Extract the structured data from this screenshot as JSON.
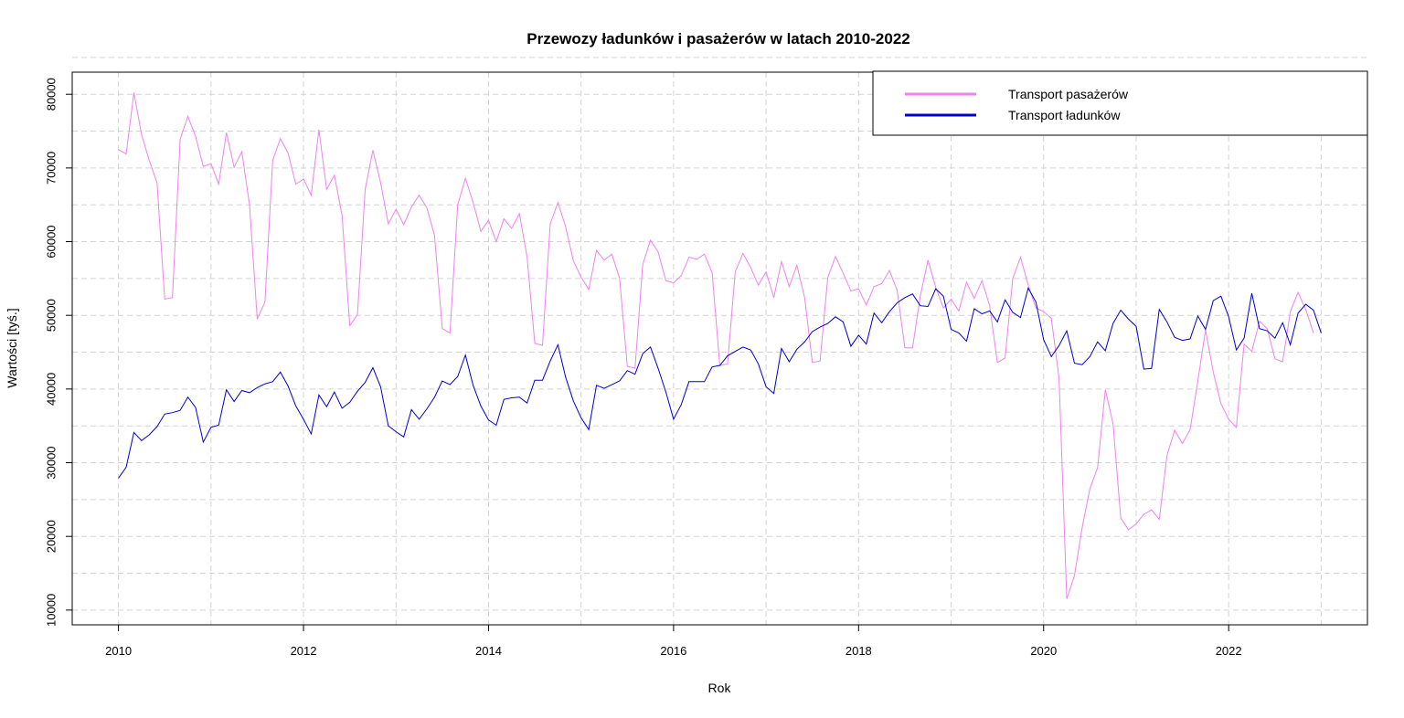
{
  "chart_data": {
    "type": "line",
    "title": "Przewozy ładunków i pasażerów w latach 2010-2022",
    "xlabel": "Rok",
    "ylabel": "Wartości [tyś.]",
    "x_start": 2010,
    "x_step_months": 1,
    "xlim": [
      2009.5,
      2023.5
    ],
    "ylim": [
      8000,
      83000
    ],
    "x_ticks": [
      2010,
      2012,
      2014,
      2016,
      2018,
      2020,
      2022
    ],
    "y_ticks": [
      10000,
      20000,
      30000,
      40000,
      50000,
      60000,
      70000,
      80000
    ],
    "grid": true,
    "legend_position": "top-right",
    "series": [
      {
        "name": "Transport pasażerów",
        "color": "#EE82EE",
        "values": [
          72500,
          71900,
          80200,
          74500,
          71000,
          68000,
          52200,
          52400,
          73900,
          77000,
          74300,
          70200,
          70600,
          67800,
          74800,
          70100,
          72200,
          65000,
          49500,
          51800,
          71000,
          74000,
          72000,
          67800,
          68500,
          66300,
          75200,
          67100,
          69000,
          63600,
          48600,
          50100,
          67100,
          72400,
          68000,
          62400,
          64400,
          62300,
          64700,
          66300,
          64600,
          60800,
          48200,
          47600,
          65000,
          68600,
          65300,
          61400,
          62900,
          60000,
          63100,
          61800,
          63800,
          57900,
          46200,
          45900,
          62400,
          65300,
          62000,
          57400,
          55200,
          53500,
          58800,
          57500,
          58300,
          55000,
          43100,
          42800,
          56900,
          60200,
          58600,
          54700,
          54400,
          55400,
          57900,
          57600,
          58300,
          55800,
          43200,
          43400,
          55900,
          58400,
          56500,
          54100,
          55900,
          52400,
          57300,
          53900,
          56800,
          52400,
          43600,
          43800,
          55100,
          58000,
          55700,
          53300,
          53600,
          51400,
          53900,
          54300,
          56100,
          53400,
          45600,
          45600,
          52600,
          57500,
          53800,
          51000,
          52200,
          50600,
          54500,
          52300,
          54700,
          51300,
          43600,
          44200,
          55000,
          57900,
          54100,
          51000,
          50500,
          49600,
          41500,
          11500,
          14700,
          21200,
          26500,
          29300,
          39900,
          35300,
          22500,
          20900,
          21700,
          23000,
          23600,
          22300,
          31000,
          34400,
          32600,
          34500,
          41100,
          48000,
          42300,
          38000,
          35900,
          34800,
          46100,
          45100,
          49200,
          48200,
          44100,
          43700,
          50500,
          53100,
          50800,
          47600
        ]
      },
      {
        "name": "Transport ładunków",
        "color": "#0000CD",
        "values": [
          27900,
          29400,
          34100,
          33000,
          33800,
          34900,
          36600,
          36800,
          37100,
          38900,
          37500,
          32800,
          34800,
          35100,
          39900,
          38300,
          39800,
          39500,
          40200,
          40700,
          41000,
          42300,
          40400,
          37700,
          35900,
          33900,
          39200,
          37600,
          39600,
          37400,
          38200,
          39700,
          40900,
          42900,
          40300,
          35000,
          34200,
          33500,
          37200,
          35900,
          37300,
          38900,
          41100,
          40600,
          41700,
          44600,
          40500,
          37700,
          35800,
          35100,
          38600,
          38800,
          38900,
          38100,
          41200,
          41200,
          43800,
          46000,
          41600,
          38400,
          36100,
          34500,
          40500,
          40100,
          40600,
          41100,
          42500,
          42000,
          44800,
          45700,
          42800,
          39600,
          35900,
          37900,
          41000,
          41000,
          41000,
          43000,
          43200,
          44500,
          45100,
          45700,
          45300,
          43400,
          40300,
          39400,
          45500,
          43700,
          45400,
          46400,
          47800,
          48400,
          48900,
          49800,
          49100,
          45800,
          47300,
          46100,
          50300,
          49000,
          50500,
          51700,
          52400,
          52900,
          51300,
          51200,
          53600,
          52600,
          48100,
          47600,
          46500,
          50900,
          50200,
          50600,
          49100,
          52100,
          50400,
          49700,
          53700,
          51800,
          46700,
          44400,
          45900,
          47900,
          43500,
          43300,
          44400,
          46400,
          45200,
          48900,
          50700,
          49500,
          48500,
          42700,
          42800,
          50800,
          49100,
          47000,
          46600,
          46800,
          49900,
          48100,
          52000,
          52600,
          49800,
          45300,
          46900,
          53000,
          48200,
          47900,
          46900,
          49000,
          46000,
          50300,
          51500,
          50700,
          47600
        ]
      }
    ]
  }
}
